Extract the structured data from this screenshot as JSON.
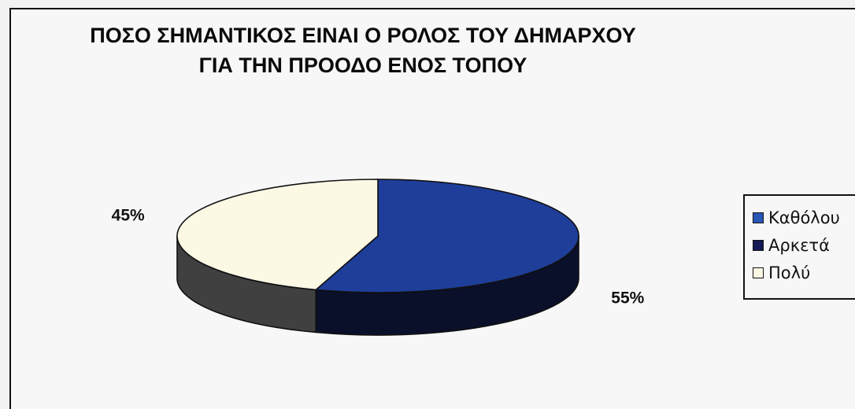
{
  "chart_data": {
    "type": "pie",
    "title_lines": [
      "ΠΟΣΟ ΣΗΜΑΝΤΙΚΟΣ ΕΙΝΑΙ Ο ΡΟΛΟΣ ΤΟΥ ΔΗΜΑΡΧΟΥ",
      "ΓΙΑ ΤΗΝ ΠΡΟΟΔΟ ΕΝΟΣ ΤΟΠΟΥ"
    ],
    "three_d": true,
    "legend_position": "right",
    "slices": [
      {
        "label": "Καθόλου",
        "value": 0,
        "data_label": "",
        "top_color": "#1f3e9a",
        "side_color": "#0a0f2a"
      },
      {
        "label": "Αρκετά",
        "value": 55,
        "data_label": "55%",
        "top_color": "#1f3e9a",
        "side_color": "#0a0f2a"
      },
      {
        "label": "Πολύ",
        "value": 45,
        "data_label": "45%",
        "top_color": "#fbf8e4",
        "side_color": "#404040"
      }
    ],
    "legend": [
      {
        "label": "Καθόλου",
        "color": "#2a56b8"
      },
      {
        "label": "Αρκετά",
        "color": "#141a55"
      },
      {
        "label": "Πολύ",
        "color": "#fbf8e4"
      }
    ]
  }
}
